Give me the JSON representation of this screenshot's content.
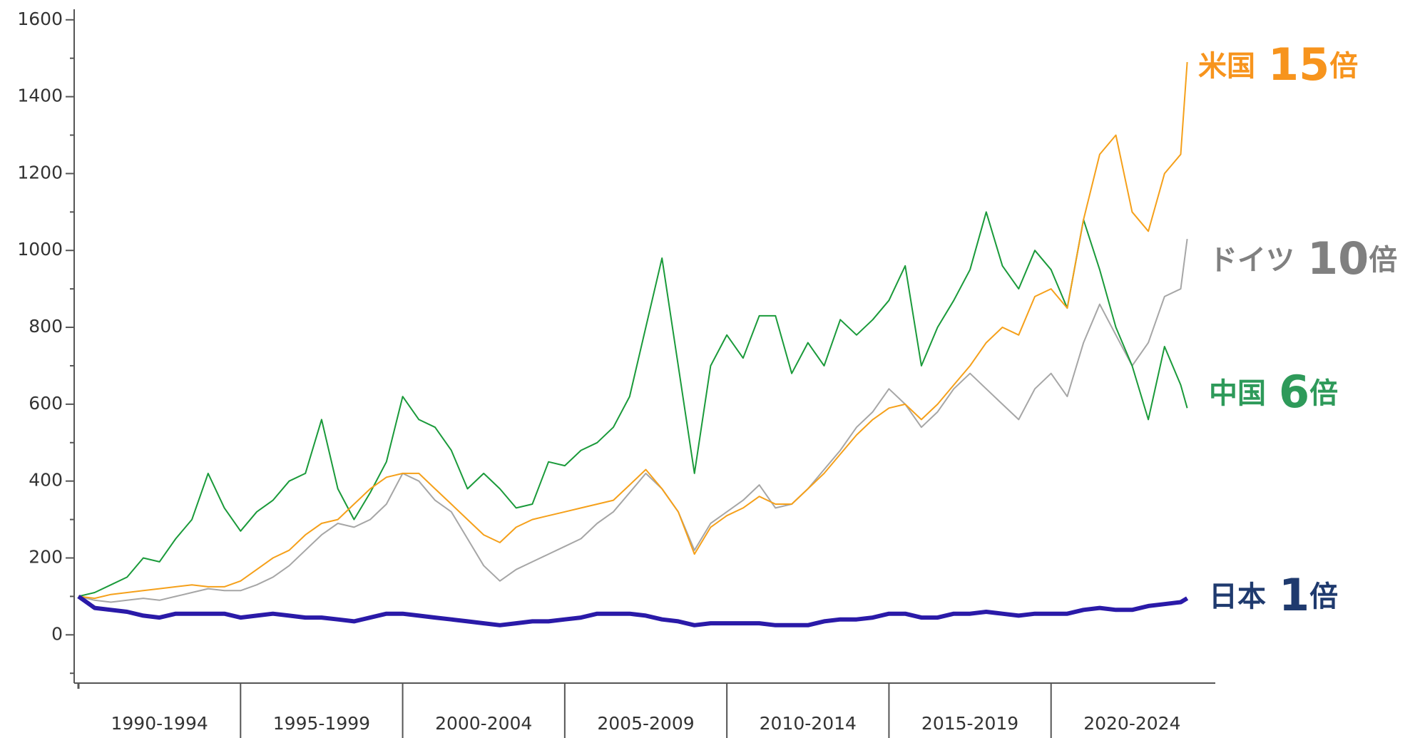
{
  "chart_data": {
    "type": "line",
    "categories": [
      "1990-1994",
      "1995-1999",
      "2000-2004",
      "2005-2009",
      "2010-2014",
      "2015-2019",
      "2020-2024"
    ],
    "xlim": [
      1990,
      2025
    ],
    "x": [
      1990,
      1990.5,
      1991,
      1991.5,
      1992,
      1992.5,
      1993,
      1993.5,
      1994,
      1994.5,
      1995,
      1995.5,
      1996,
      1996.5,
      1997,
      1997.5,
      1998,
      1998.5,
      1999,
      1999.5,
      2000,
      2000.5,
      2001,
      2001.5,
      2002,
      2002.5,
      2003,
      2003.5,
      2004,
      2004.5,
      2005,
      2005.5,
      2006,
      2006.5,
      2007,
      2007.5,
      2008,
      2008.5,
      2009,
      2009.5,
      2010,
      2010.5,
      2011,
      2011.5,
      2012,
      2012.5,
      2013,
      2013.5,
      2014,
      2014.5,
      2015,
      2015.5,
      2016,
      2016.5,
      2017,
      2017.5,
      2018,
      2018.5,
      2019,
      2019.5,
      2020,
      2020.5,
      2021,
      2021.5,
      2022,
      2022.5,
      2023,
      2023.5,
      2024,
      2024.2
    ],
    "ylim": [
      -120,
      1620
    ],
    "yticks": [
      0,
      200,
      400,
      600,
      800,
      1000,
      1200,
      1400,
      1600
    ],
    "yminorticks": [
      -100,
      100,
      300,
      500,
      700,
      900,
      1100,
      1300,
      1500
    ],
    "series": [
      {
        "name": "ドイツ",
        "color": "#a6a6a6",
        "label_color": "#808080",
        "multiple": 10,
        "unit": "倍",
        "values": [
          100,
          90,
          85,
          90,
          95,
          90,
          100,
          110,
          120,
          115,
          115,
          130,
          150,
          180,
          220,
          260,
          290,
          280,
          300,
          340,
          420,
          400,
          350,
          320,
          250,
          180,
          140,
          170,
          190,
          210,
          230,
          250,
          290,
          320,
          370,
          420,
          380,
          320,
          220,
          290,
          320,
          350,
          390,
          330,
          340,
          380,
          430,
          480,
          540,
          580,
          640,
          600,
          540,
          580,
          640,
          680,
          640,
          600,
          560,
          640,
          680,
          620,
          760,
          860,
          780,
          700,
          760,
          880,
          900,
          1030
        ]
      },
      {
        "name": "中国",
        "color": "#1a9a3a",
        "label_color": "#2e9a5a",
        "multiple": 6,
        "unit": "倍",
        "values": [
          100,
          110,
          130,
          150,
          200,
          190,
          250,
          300,
          420,
          330,
          270,
          320,
          350,
          400,
          420,
          560,
          380,
          300,
          370,
          450,
          620,
          560,
          540,
          480,
          380,
          420,
          380,
          330,
          340,
          450,
          440,
          480,
          500,
          540,
          620,
          800,
          980,
          700,
          420,
          700,
          780,
          720,
          830,
          830,
          680,
          760,
          700,
          820,
          780,
          820,
          870,
          960,
          700,
          800,
          870,
          950,
          1100,
          960,
          900,
          1000,
          950,
          850,
          1080,
          950,
          800,
          700,
          560,
          750,
          650,
          590
        ]
      },
      {
        "name": "米国",
        "color": "#f5a01a",
        "label_color": "#f7941d",
        "multiple": 15,
        "unit": "倍",
        "values": [
          100,
          95,
          105,
          110,
          115,
          120,
          125,
          130,
          125,
          125,
          140,
          170,
          200,
          220,
          260,
          290,
          300,
          340,
          380,
          410,
          420,
          420,
          380,
          340,
          300,
          260,
          240,
          280,
          300,
          310,
          320,
          330,
          340,
          350,
          390,
          430,
          380,
          320,
          210,
          280,
          310,
          330,
          360,
          340,
          340,
          380,
          420,
          470,
          520,
          560,
          590,
          600,
          560,
          600,
          650,
          700,
          760,
          800,
          780,
          880,
          900,
          850,
          1080,
          1250,
          1300,
          1100,
          1050,
          1200,
          1250,
          1490
        ]
      },
      {
        "name": "日本",
        "color": "#2a1aa8",
        "label_color": "#1f3a6e",
        "multiple": 1,
        "unit": "倍",
        "width": 6,
        "values": [
          100,
          70,
          65,
          60,
          50,
          45,
          55,
          55,
          55,
          55,
          45,
          50,
          55,
          50,
          45,
          45,
          40,
          35,
          45,
          55,
          55,
          50,
          45,
          40,
          35,
          30,
          25,
          30,
          35,
          35,
          40,
          45,
          55,
          55,
          55,
          50,
          40,
          35,
          25,
          30,
          30,
          30,
          30,
          25,
          25,
          25,
          35,
          40,
          40,
          45,
          55,
          55,
          45,
          45,
          55,
          55,
          60,
          55,
          50,
          55,
          55,
          55,
          65,
          70,
          65,
          65,
          75,
          80,
          85,
          95
        ]
      }
    ]
  }
}
